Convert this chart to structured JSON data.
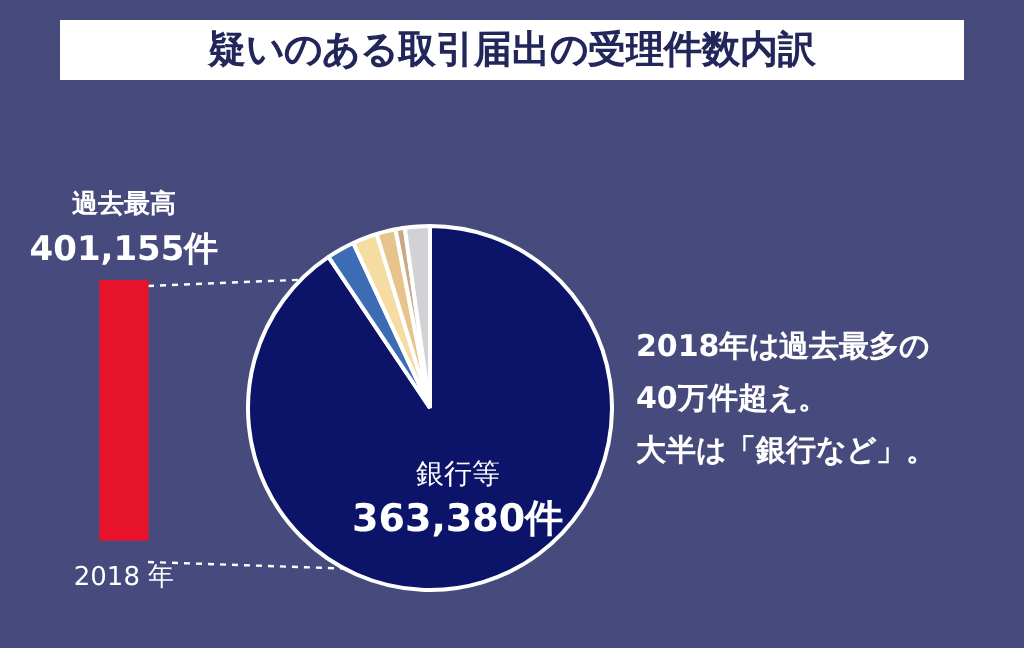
{
  "chart_data": [
    {
      "type": "bar",
      "categories": [
        "2018 年"
      ],
      "values": [
        401155
      ],
      "ylim": [
        0,
        401155
      ],
      "tick_labels": "x",
      "color": "#e8142c",
      "value_labels": [
        "401,155件"
      ],
      "annotations": [
        "過去最高"
      ],
      "legend": false,
      "grid": false
    },
    {
      "type": "pie",
      "title": "疑いのある取引届出の受理件数内訳",
      "categories": [
        "銀行等",
        null,
        null,
        null,
        null,
        null
      ],
      "values": [
        363380,
        10000,
        8800,
        6800,
        3300,
        8875
      ],
      "colors": [
        "#0b1469",
        "#3c6cb4",
        "#f5dca0",
        "#e6c48c",
        "#c8aa82",
        "#d2d2d6"
      ],
      "value_labels": [
        "363,380件",
        null,
        null,
        null,
        null,
        null
      ],
      "annotations": [
        "2018年は過去最多の",
        "40万件超え。",
        "大半は「銀行など」。"
      ],
      "legend": false
    }
  ]
}
